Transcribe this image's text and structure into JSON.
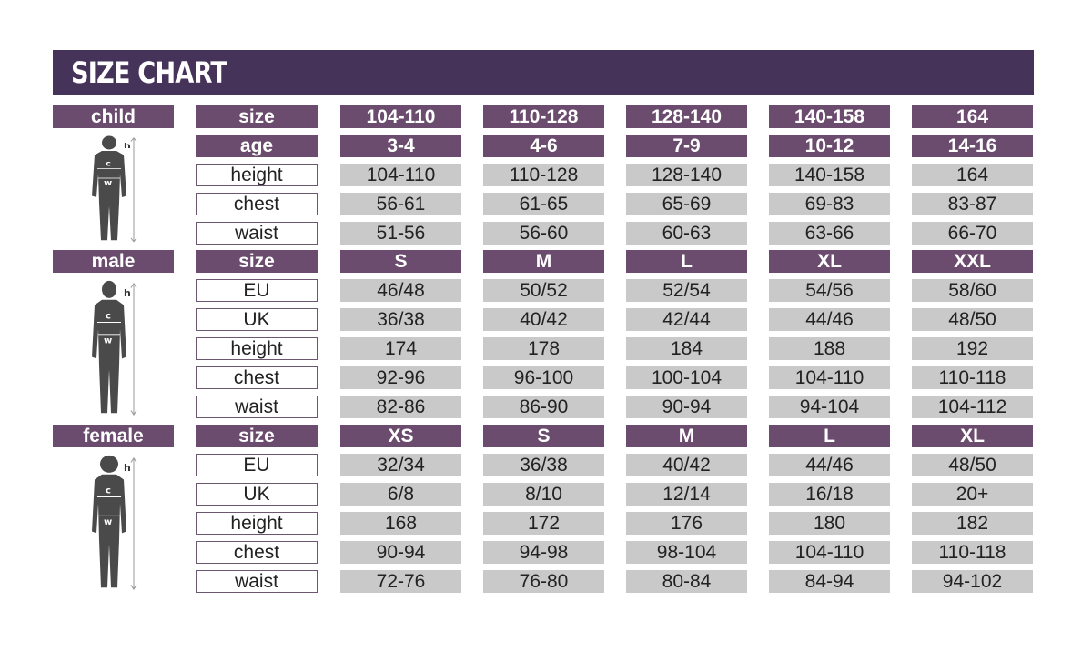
{
  "title": "SIZE CHART",
  "colors": {
    "title_bar": "#46335a",
    "header": "#6b4c6e",
    "value_cell": "#c9c9c9"
  },
  "sections": [
    {
      "label": "child",
      "figure": "child-silhouette-icon",
      "rows": [
        {
          "param": "size",
          "header": true,
          "values": [
            "104-110",
            "110-128",
            "128-140",
            "140-158",
            "164"
          ]
        },
        {
          "param": "age",
          "header": true,
          "values": [
            "3-4",
            "4-6",
            "7-9",
            "10-12",
            "14-16"
          ]
        },
        {
          "param": "height",
          "values": [
            "104-110",
            "110-128",
            "128-140",
            "140-158",
            "164"
          ]
        },
        {
          "param": "chest",
          "values": [
            "56-61",
            "61-65",
            "65-69",
            "69-83",
            "83-87"
          ]
        },
        {
          "param": "waist",
          "values": [
            "51-56",
            "56-60",
            "60-63",
            "63-66",
            "66-70"
          ]
        }
      ]
    },
    {
      "label": "male",
      "figure": "male-silhouette-icon",
      "rows": [
        {
          "param": "size",
          "header": true,
          "values": [
            "S",
            "M",
            "L",
            "XL",
            "XXL"
          ]
        },
        {
          "param": "EU",
          "values": [
            "46/48",
            "50/52",
            "52/54",
            "54/56",
            "58/60"
          ]
        },
        {
          "param": "UK",
          "values": [
            "36/38",
            "40/42",
            "42/44",
            "44/46",
            "48/50"
          ]
        },
        {
          "param": "height",
          "values": [
            "174",
            "178",
            "184",
            "188",
            "192"
          ]
        },
        {
          "param": "chest",
          "values": [
            "92-96",
            "96-100",
            "100-104",
            "104-110",
            "110-118"
          ]
        },
        {
          "param": "waist",
          "values": [
            "82-86",
            "86-90",
            "90-94",
            "94-104",
            "104-112"
          ]
        }
      ]
    },
    {
      "label": "female",
      "figure": "female-silhouette-icon",
      "rows": [
        {
          "param": "size",
          "header": true,
          "values": [
            "XS",
            "S",
            "M",
            "L",
            "XL"
          ]
        },
        {
          "param": "EU",
          "values": [
            "32/34",
            "36/38",
            "40/42",
            "44/46",
            "48/50"
          ]
        },
        {
          "param": "UK",
          "values": [
            "6/8",
            "8/10",
            "12/14",
            "16/18",
            "20+"
          ]
        },
        {
          "param": "height",
          "values": [
            "168",
            "172",
            "176",
            "180",
            "182"
          ]
        },
        {
          "param": "chest",
          "values": [
            "90-94",
            "94-98",
            "98-104",
            "104-110",
            "110-118"
          ]
        },
        {
          "param": "waist",
          "values": [
            "72-76",
            "76-80",
            "80-84",
            "84-94",
            "94-102"
          ]
        }
      ]
    }
  ],
  "figure_labels": {
    "h": "h",
    "c": "c",
    "w": "w"
  }
}
